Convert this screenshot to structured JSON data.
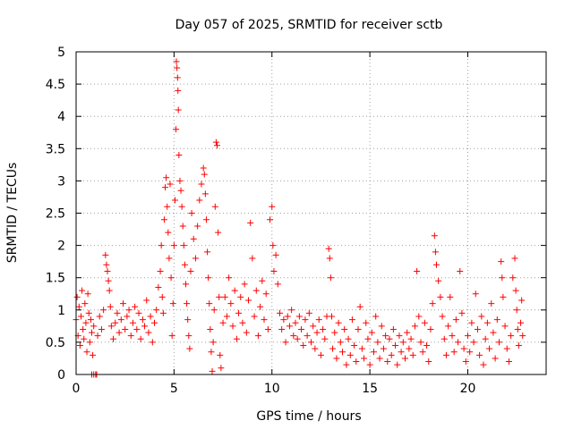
{
  "chart_data": {
    "type": "scatter",
    "title": "Day 057 of 2025, SRMTID for receiver sctb",
    "xlabel": "GPS time / hours",
    "ylabel": "SRMTID / TECUs",
    "xlim": [
      0,
      24
    ],
    "ylim": [
      0,
      5
    ],
    "x_ticks": [
      0,
      5,
      10,
      15,
      20
    ],
    "x_tick_labels": [
      "0",
      "5",
      "10",
      "15",
      "20"
    ],
    "y_ticks": [
      0,
      0.5,
      1,
      1.5,
      2,
      2.5,
      3,
      3.5,
      4,
      4.5,
      5
    ],
    "y_tick_labels": [
      "0",
      "0.5",
      "1",
      "1.5",
      "2",
      "2.5",
      "3",
      "3.5",
      "4",
      "4.5",
      "5"
    ],
    "grid": true,
    "marker": "+",
    "series": [
      {
        "name": "SRMTID",
        "color": "#ff0000",
        "points": [
          [
            0.0,
            0.85
          ],
          [
            0.05,
            1.2
          ],
          [
            0.1,
            0.6
          ],
          [
            0.15,
            1.05
          ],
          [
            0.2,
            0.45
          ],
          [
            0.25,
            0.9
          ],
          [
            0.3,
            1.3
          ],
          [
            0.35,
            0.7
          ],
          [
            0.4,
            0.55
          ],
          [
            0.45,
            1.1
          ],
          [
            0.5,
            0.8
          ],
          [
            0.55,
            0.35
          ],
          [
            0.6,
            1.25
          ],
          [
            0.65,
            0.95
          ],
          [
            0.7,
            0.5
          ],
          [
            0.75,
            0.85
          ],
          [
            0.8,
            0.65
          ],
          [
            0.85,
            0.3
          ],
          [
            0.9,
            0.75
          ],
          [
            0.8,
            0.0
          ],
          [
            0.9,
            0.0
          ],
          [
            1.0,
            0.0
          ],
          [
            1.05,
            0.0
          ],
          [
            1.1,
            0.6
          ],
          [
            1.2,
            0.9
          ],
          [
            1.3,
            0.7
          ],
          [
            1.4,
            1.0
          ],
          [
            1.5,
            1.85
          ],
          [
            1.55,
            1.7
          ],
          [
            1.6,
            1.6
          ],
          [
            1.65,
            1.45
          ],
          [
            1.7,
            1.3
          ],
          [
            1.75,
            1.05
          ],
          [
            1.8,
            0.75
          ],
          [
            1.9,
            0.55
          ],
          [
            2.0,
            0.8
          ],
          [
            2.1,
            0.95
          ],
          [
            2.2,
            0.65
          ],
          [
            2.3,
            0.85
          ],
          [
            2.4,
            1.1
          ],
          [
            2.5,
            0.7
          ],
          [
            2.6,
            0.9
          ],
          [
            2.7,
            1.0
          ],
          [
            2.8,
            0.6
          ],
          [
            2.9,
            0.8
          ],
          [
            3.0,
            1.05
          ],
          [
            3.1,
            0.7
          ],
          [
            3.2,
            0.95
          ],
          [
            3.3,
            0.55
          ],
          [
            3.4,
            0.85
          ],
          [
            3.5,
            0.75
          ],
          [
            3.6,
            1.15
          ],
          [
            3.7,
            0.65
          ],
          [
            3.8,
            0.9
          ],
          [
            3.9,
            0.5
          ],
          [
            4.0,
            0.8
          ],
          [
            4.1,
            1.0
          ],
          [
            4.2,
            1.35
          ],
          [
            4.3,
            1.6
          ],
          [
            4.35,
            2.0
          ],
          [
            4.4,
            1.2
          ],
          [
            4.45,
            0.95
          ],
          [
            4.5,
            2.4
          ],
          [
            4.55,
            2.9
          ],
          [
            4.6,
            3.05
          ],
          [
            4.65,
            2.6
          ],
          [
            4.7,
            2.2
          ],
          [
            4.75,
            1.8
          ],
          [
            4.8,
            2.95
          ],
          [
            4.85,
            1.5
          ],
          [
            4.9,
            0.6
          ],
          [
            4.95,
            1.1
          ],
          [
            5.0,
            2.0
          ],
          [
            5.05,
            2.7
          ],
          [
            5.1,
            3.8
          ],
          [
            5.12,
            4.85
          ],
          [
            5.15,
            4.75
          ],
          [
            5.18,
            4.6
          ],
          [
            5.2,
            4.4
          ],
          [
            5.22,
            4.1
          ],
          [
            5.25,
            3.4
          ],
          [
            5.3,
            3.0
          ],
          [
            5.35,
            2.85
          ],
          [
            5.4,
            2.6
          ],
          [
            5.45,
            2.3
          ],
          [
            5.5,
            2.0
          ],
          [
            5.55,
            1.7
          ],
          [
            5.6,
            1.4
          ],
          [
            5.65,
            1.1
          ],
          [
            5.7,
            0.85
          ],
          [
            5.75,
            0.6
          ],
          [
            5.8,
            0.4
          ],
          [
            5.85,
            1.6
          ],
          [
            5.9,
            2.5
          ],
          [
            6.0,
            2.1
          ],
          [
            6.1,
            1.8
          ],
          [
            6.2,
            2.3
          ],
          [
            6.3,
            2.7
          ],
          [
            6.4,
            2.95
          ],
          [
            6.5,
            3.2
          ],
          [
            6.55,
            3.1
          ],
          [
            6.6,
            2.8
          ],
          [
            6.65,
            2.4
          ],
          [
            6.7,
            1.9
          ],
          [
            6.75,
            1.5
          ],
          [
            6.8,
            1.1
          ],
          [
            6.85,
            0.7
          ],
          [
            6.9,
            0.35
          ],
          [
            6.95,
            0.05
          ],
          [
            7.0,
            0.5
          ],
          [
            7.05,
            1.0
          ],
          [
            7.1,
            2.6
          ],
          [
            7.15,
            3.6
          ],
          [
            7.2,
            3.55
          ],
          [
            7.25,
            2.2
          ],
          [
            7.3,
            1.2
          ],
          [
            7.35,
            0.3
          ],
          [
            7.4,
            0.1
          ],
          [
            7.5,
            0.8
          ],
          [
            7.6,
            1.2
          ],
          [
            7.7,
            0.9
          ],
          [
            7.8,
            1.5
          ],
          [
            7.9,
            1.1
          ],
          [
            8.0,
            0.75
          ],
          [
            8.1,
            1.3
          ],
          [
            8.2,
            0.55
          ],
          [
            8.3,
            0.95
          ],
          [
            8.4,
            1.2
          ],
          [
            8.5,
            0.8
          ],
          [
            8.6,
            1.4
          ],
          [
            8.7,
            0.65
          ],
          [
            8.8,
            1.15
          ],
          [
            8.9,
            2.35
          ],
          [
            9.0,
            1.8
          ],
          [
            9.1,
            0.9
          ],
          [
            9.2,
            1.3
          ],
          [
            9.3,
            0.6
          ],
          [
            9.4,
            1.05
          ],
          [
            9.5,
            1.45
          ],
          [
            9.6,
            0.85
          ],
          [
            9.7,
            1.25
          ],
          [
            9.8,
            0.7
          ],
          [
            9.9,
            2.4
          ],
          [
            10.0,
            2.6
          ],
          [
            10.05,
            2.0
          ],
          [
            10.1,
            1.6
          ],
          [
            10.2,
            1.85
          ],
          [
            10.3,
            1.4
          ],
          [
            10.4,
            0.95
          ],
          [
            10.5,
            0.7
          ],
          [
            10.6,
            0.85
          ],
          [
            10.7,
            0.5
          ],
          [
            10.8,
            0.9
          ],
          [
            10.9,
            0.75
          ],
          [
            11.0,
            1.0
          ],
          [
            11.1,
            0.6
          ],
          [
            11.2,
            0.8
          ],
          [
            11.3,
            0.55
          ],
          [
            11.4,
            0.9
          ],
          [
            11.5,
            0.7
          ],
          [
            11.6,
            0.45
          ],
          [
            11.7,
            0.85
          ],
          [
            11.8,
            0.6
          ],
          [
            11.9,
            0.95
          ],
          [
            12.0,
            0.5
          ],
          [
            12.1,
            0.75
          ],
          [
            12.2,
            0.4
          ],
          [
            12.3,
            0.65
          ],
          [
            12.4,
            0.85
          ],
          [
            12.5,
            0.3
          ],
          [
            12.6,
            0.7
          ],
          [
            12.7,
            0.55
          ],
          [
            12.8,
            0.9
          ],
          [
            12.9,
            1.95
          ],
          [
            12.95,
            1.8
          ],
          [
            13.0,
            1.5
          ],
          [
            13.05,
            0.9
          ],
          [
            13.1,
            0.4
          ],
          [
            13.2,
            0.65
          ],
          [
            13.3,
            0.25
          ],
          [
            13.4,
            0.8
          ],
          [
            13.5,
            0.5
          ],
          [
            13.6,
            0.35
          ],
          [
            13.7,
            0.7
          ],
          [
            13.8,
            0.15
          ],
          [
            13.9,
            0.55
          ],
          [
            14.0,
            0.3
          ],
          [
            14.1,
            0.85
          ],
          [
            14.2,
            0.45
          ],
          [
            14.3,
            0.2
          ],
          [
            14.4,
            0.7
          ],
          [
            14.5,
            1.05
          ],
          [
            14.6,
            0.4
          ],
          [
            14.7,
            0.25
          ],
          [
            14.8,
            0.8
          ],
          [
            14.9,
            0.55
          ],
          [
            15.0,
            0.15
          ],
          [
            15.1,
            0.65
          ],
          [
            15.2,
            0.35
          ],
          [
            15.3,
            0.9
          ],
          [
            15.4,
            0.5
          ],
          [
            15.5,
            0.25
          ],
          [
            15.6,
            0.75
          ],
          [
            15.7,
            0.4
          ],
          [
            15.8,
            0.6
          ],
          [
            15.9,
            0.2
          ],
          [
            16.0,
            0.55
          ],
          [
            16.1,
            0.3
          ],
          [
            16.2,
            0.7
          ],
          [
            16.3,
            0.45
          ],
          [
            16.4,
            0.15
          ],
          [
            16.5,
            0.6
          ],
          [
            16.6,
            0.35
          ],
          [
            16.7,
            0.5
          ],
          [
            16.8,
            0.25
          ],
          [
            16.9,
            0.65
          ],
          [
            17.0,
            0.4
          ],
          [
            17.1,
            0.55
          ],
          [
            17.2,
            0.3
          ],
          [
            17.3,
            0.75
          ],
          [
            17.4,
            1.6
          ],
          [
            17.5,
            0.9
          ],
          [
            17.6,
            0.5
          ],
          [
            17.7,
            0.35
          ],
          [
            17.8,
            0.8
          ],
          [
            17.9,
            0.45
          ],
          [
            18.0,
            0.2
          ],
          [
            18.1,
            0.7
          ],
          [
            18.2,
            1.1
          ],
          [
            18.3,
            2.15
          ],
          [
            18.35,
            1.9
          ],
          [
            18.4,
            1.7
          ],
          [
            18.5,
            1.45
          ],
          [
            18.6,
            1.2
          ],
          [
            18.7,
            0.9
          ],
          [
            18.8,
            0.55
          ],
          [
            18.9,
            0.3
          ],
          [
            19.0,
            0.75
          ],
          [
            19.1,
            1.2
          ],
          [
            19.2,
            0.6
          ],
          [
            19.3,
            0.35
          ],
          [
            19.4,
            0.85
          ],
          [
            19.5,
            0.5
          ],
          [
            19.6,
            1.6
          ],
          [
            19.7,
            0.95
          ],
          [
            19.8,
            0.4
          ],
          [
            19.9,
            0.2
          ],
          [
            20.0,
            0.6
          ],
          [
            20.1,
            0.35
          ],
          [
            20.2,
            0.8
          ],
          [
            20.3,
            0.5
          ],
          [
            20.4,
            1.25
          ],
          [
            20.5,
            0.7
          ],
          [
            20.6,
            0.3
          ],
          [
            20.7,
            0.9
          ],
          [
            20.8,
            0.15
          ],
          [
            20.9,
            0.55
          ],
          [
            21.0,
            0.8
          ],
          [
            21.1,
            0.4
          ],
          [
            21.2,
            1.1
          ],
          [
            21.3,
            0.65
          ],
          [
            21.4,
            0.25
          ],
          [
            21.5,
            0.85
          ],
          [
            21.6,
            0.5
          ],
          [
            21.7,
            1.75
          ],
          [
            21.75,
            1.5
          ],
          [
            21.8,
            1.2
          ],
          [
            21.9,
            0.75
          ],
          [
            22.0,
            0.4
          ],
          [
            22.1,
            0.2
          ],
          [
            22.2,
            0.6
          ],
          [
            22.3,
            1.5
          ],
          [
            22.4,
            1.8
          ],
          [
            22.45,
            1.3
          ],
          [
            22.5,
            1.0
          ],
          [
            22.55,
            0.7
          ],
          [
            22.6,
            0.45
          ],
          [
            22.7,
            0.8
          ],
          [
            22.75,
            1.15
          ],
          [
            22.8,
            0.6
          ]
        ]
      }
    ]
  }
}
